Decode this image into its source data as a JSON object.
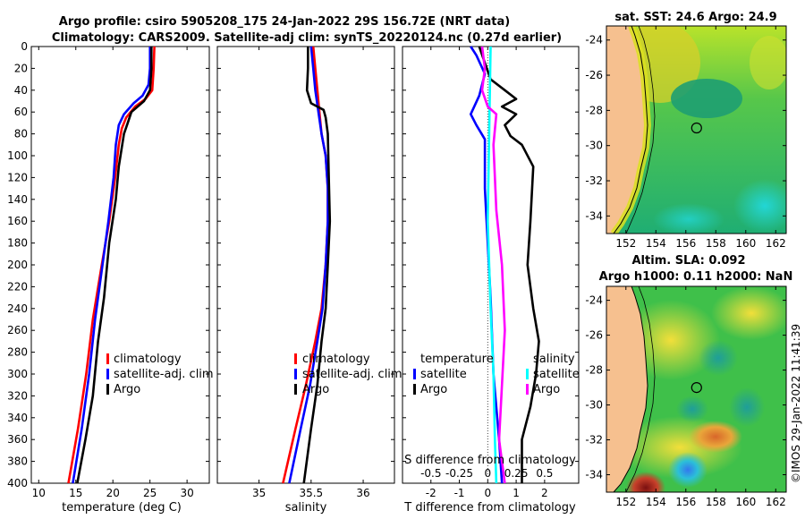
{
  "title": {
    "line1": "Argo profile: csiro 5905208_175 24-Jan-2022 29S 156.72E (NRT data)",
    "line2": "Climatology: CARS2009. Satellite-adj clim: synTS_20220124.nc (0.27d earlier)"
  },
  "footer": "©IMOS 29-Jan-2022 11:41:39",
  "colors": {
    "red": "#ff0000",
    "blue": "#0000ff",
    "black": "#000000",
    "cyan": "#00ffff",
    "magenta": "#ff00ff",
    "land": "#f6c08f"
  },
  "chart_data": [
    {
      "type": "line",
      "id": "temperature",
      "xlabel": "temperature (deg C)",
      "xlim": [
        9,
        33
      ],
      "ylim": [
        0,
        400
      ],
      "xticks": [
        10,
        15,
        20,
        25,
        30
      ],
      "yticks": [
        0,
        20,
        40,
        60,
        80,
        100,
        120,
        140,
        160,
        180,
        200,
        220,
        240,
        260,
        280,
        300,
        320,
        340,
        360,
        380,
        400
      ],
      "legend": [
        "climatology",
        "satellite-adj. clim",
        "Argo"
      ],
      "series": [
        {
          "name": "climatology",
          "color": "#ff0000",
          "points": [
            [
              25.6,
              0
            ],
            [
              25.5,
              20
            ],
            [
              25.3,
              40
            ],
            [
              24.4,
              48
            ],
            [
              23.0,
              55
            ],
            [
              21.8,
              65
            ],
            [
              21.2,
              75
            ],
            [
              20.8,
              90
            ],
            [
              20.3,
              120
            ],
            [
              19.5,
              160
            ],
            [
              18.5,
              200
            ],
            [
              17.3,
              250
            ],
            [
              16.4,
              300
            ],
            [
              15.3,
              350
            ],
            [
              14.0,
              400
            ]
          ]
        },
        {
          "name": "satellite-adj. clim",
          "color": "#0000ff",
          "points": [
            [
              25.0,
              0
            ],
            [
              25.0,
              20
            ],
            [
              24.8,
              35
            ],
            [
              24.0,
              45
            ],
            [
              22.8,
              52
            ],
            [
              21.5,
              62
            ],
            [
              20.8,
              72
            ],
            [
              20.4,
              90
            ],
            [
              20.1,
              120
            ],
            [
              19.4,
              160
            ],
            [
              18.6,
              200
            ],
            [
              17.6,
              250
            ],
            [
              16.8,
              300
            ],
            [
              15.8,
              350
            ],
            [
              14.6,
              400
            ]
          ]
        },
        {
          "name": "Argo",
          "color": "#000000",
          "points": [
            [
              25.2,
              0
            ],
            [
              25.2,
              20
            ],
            [
              25.0,
              40
            ],
            [
              24.2,
              50
            ],
            [
              22.5,
              60
            ],
            [
              22.0,
              70
            ],
            [
              21.5,
              80
            ],
            [
              20.8,
              110
            ],
            [
              20.4,
              140
            ],
            [
              19.5,
              180
            ],
            [
              18.8,
              230
            ],
            [
              18.0,
              270
            ],
            [
              17.3,
              320
            ],
            [
              16.3,
              360
            ],
            [
              15.2,
              400
            ]
          ]
        }
      ]
    },
    {
      "type": "line",
      "id": "salinity",
      "xlabel": "salinity",
      "xlim": [
        34.6,
        36.3
      ],
      "ylim": [
        0,
        400
      ],
      "xticks": [
        35,
        35.5,
        36
      ],
      "xticklabels": [
        "35",
        "35.5",
        "36"
      ],
      "legend": [
        "climatology",
        "satellite-adj. clim",
        "Argo"
      ],
      "series": [
        {
          "name": "climatology",
          "color": "#ff0000",
          "points": [
            [
              35.52,
              0
            ],
            [
              35.54,
              20
            ],
            [
              35.56,
              40
            ],
            [
              35.58,
              60
            ],
            [
              35.6,
              80
            ],
            [
              35.64,
              100
            ],
            [
              35.66,
              130
            ],
            [
              35.66,
              160
            ],
            [
              35.64,
              200
            ],
            [
              35.6,
              240
            ],
            [
              35.54,
              270
            ],
            [
              35.45,
              310
            ],
            [
              35.35,
              350
            ],
            [
              35.23,
              400
            ]
          ]
        },
        {
          "name": "satellite-adj. clim",
          "color": "#0000ff",
          "points": [
            [
              35.5,
              0
            ],
            [
              35.52,
              20
            ],
            [
              35.54,
              40
            ],
            [
              35.57,
              60
            ],
            [
              35.6,
              80
            ],
            [
              35.64,
              100
            ],
            [
              35.66,
              130
            ],
            [
              35.66,
              160
            ],
            [
              35.64,
              200
            ],
            [
              35.61,
              240
            ],
            [
              35.56,
              270
            ],
            [
              35.49,
              310
            ],
            [
              35.4,
              350
            ],
            [
              35.29,
              400
            ]
          ]
        },
        {
          "name": "Argo",
          "color": "#000000",
          "points": [
            [
              35.47,
              0
            ],
            [
              35.47,
              20
            ],
            [
              35.46,
              40
            ],
            [
              35.5,
              52
            ],
            [
              35.62,
              58
            ],
            [
              35.64,
              65
            ],
            [
              35.66,
              80
            ],
            [
              35.67,
              120
            ],
            [
              35.68,
              160
            ],
            [
              35.66,
              200
            ],
            [
              35.64,
              240
            ],
            [
              35.6,
              270
            ],
            [
              35.56,
              310
            ],
            [
              35.5,
              350
            ],
            [
              35.43,
              400
            ]
          ]
        }
      ]
    },
    {
      "type": "line",
      "id": "differences",
      "xlabel": "T difference from climatology",
      "xlabel2": "S difference from climatology",
      "xlim": [
        -3,
        3.2
      ],
      "ylim": [
        0,
        400
      ],
      "xticks": [
        -2,
        -1,
        0,
        1,
        2
      ],
      "x2ticks": [
        -0.5,
        -0.25,
        0,
        0.25,
        0.5
      ],
      "x2ticklabels": [
        "-0.5",
        "-0.25",
        "0",
        "0.25",
        "0.5"
      ],
      "x2scale": 4,
      "legend_left_title": "temperature",
      "legend_left": [
        "satellite",
        "Argo"
      ],
      "legend_right_title": "salinity",
      "legend_right": [
        "satellite",
        "Argo"
      ],
      "series": [
        {
          "name": "T satellite",
          "color": "#0000ff",
          "points": [
            [
              -0.6,
              0
            ],
            [
              -0.4,
              8
            ],
            [
              -0.1,
              25
            ],
            [
              -0.3,
              45
            ],
            [
              -0.6,
              62
            ],
            [
              -0.4,
              72
            ],
            [
              -0.1,
              85
            ],
            [
              -0.1,
              130
            ],
            [
              0.0,
              180
            ],
            [
              0.1,
              230
            ],
            [
              0.2,
              300
            ],
            [
              0.4,
              360
            ],
            [
              0.5,
              400
            ]
          ]
        },
        {
          "name": "T Argo",
          "color": "#000000",
          "points": [
            [
              -0.3,
              0
            ],
            [
              -0.1,
              15
            ],
            [
              0.1,
              30
            ],
            [
              0.6,
              40
            ],
            [
              1.0,
              48
            ],
            [
              0.5,
              55
            ],
            [
              1.0,
              62
            ],
            [
              0.6,
              72
            ],
            [
              0.8,
              82
            ],
            [
              1.2,
              90
            ],
            [
              1.6,
              110
            ],
            [
              1.5,
              160
            ],
            [
              1.4,
              200
            ],
            [
              1.6,
              240
            ],
            [
              1.8,
              270
            ],
            [
              1.7,
              300
            ],
            [
              1.5,
              330
            ],
            [
              1.2,
              360
            ],
            [
              1.2,
              400
            ]
          ]
        },
        {
          "name": "S satellite",
          "color": "#00ffff",
          "points": [
            [
              0.1,
              0
            ],
            [
              0.05,
              80
            ],
            [
              0.0,
              160
            ],
            [
              0.1,
              240
            ],
            [
              0.2,
              300
            ],
            [
              0.25,
              360
            ],
            [
              0.3,
              400
            ]
          ]
        },
        {
          "name": "S Argo",
          "color": "#ff00ff",
          "points": [
            [
              -0.2,
              0
            ],
            [
              -0.1,
              20
            ],
            [
              -0.2,
              40
            ],
            [
              0.0,
              55
            ],
            [
              0.3,
              62
            ],
            [
              0.2,
              90
            ],
            [
              0.3,
              150
            ],
            [
              0.5,
              200
            ],
            [
              0.6,
              260
            ],
            [
              0.5,
              310
            ],
            [
              0.4,
              360
            ],
            [
              0.6,
              400
            ]
          ]
        }
      ]
    },
    {
      "type": "heatmap",
      "id": "sst",
      "title": "sat. SST: 24.6 Argo: 24.9",
      "xlim": [
        150.7,
        162.7
      ],
      "ylim": [
        -35,
        -23.2
      ],
      "xticks": [
        152,
        154,
        156,
        158,
        160,
        162
      ],
      "yticks": [
        -24,
        -26,
        -28,
        -30,
        -32,
        -34
      ],
      "argo": [
        156.72,
        -29.0
      ]
    },
    {
      "type": "heatmap",
      "id": "sla",
      "title": "Altim. SLA: 0.092",
      "subtitle": "Argo h1000: 0.11 h2000: NaN",
      "xlim": [
        150.7,
        162.7
      ],
      "ylim": [
        -35,
        -23.2
      ],
      "xticks": [
        152,
        154,
        156,
        158,
        160,
        162
      ],
      "yticks": [
        -24,
        -26,
        -28,
        -30,
        -32,
        -34
      ],
      "argo": [
        156.72,
        -29.0
      ]
    }
  ]
}
